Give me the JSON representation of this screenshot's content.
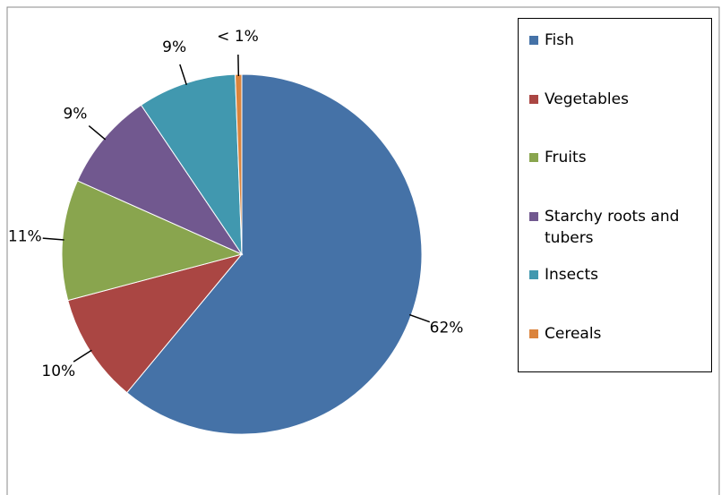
{
  "chart_data": {
    "type": "pie",
    "categories": [
      "Fish",
      "Vegetables",
      "Fruits",
      "Starchy roots and tubers",
      "Insects",
      "Cereals"
    ],
    "values": [
      62,
      10,
      11,
      9,
      9,
      0.6
    ],
    "value_labels": [
      "62%",
      "10%",
      "11%",
      "9%",
      "9%",
      "< 1%"
    ],
    "colors": [
      "#4572a7",
      "#aa4643",
      "#89a54e",
      "#71588f",
      "#4198af",
      "#db843d"
    ],
    "legend": "right"
  }
}
